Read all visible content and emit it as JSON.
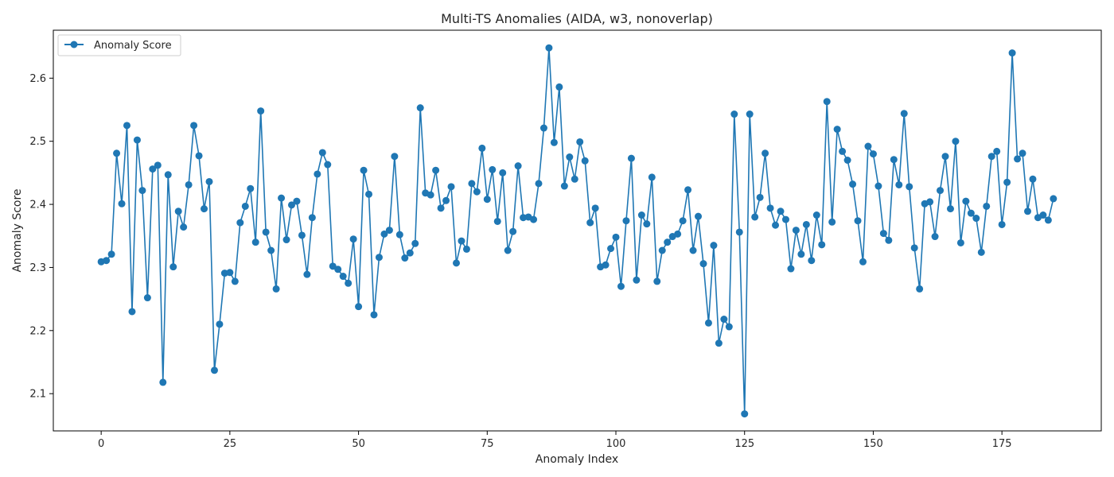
{
  "chart_data": {
    "type": "line",
    "title": "Multi-TS Anomalies (AIDA, w3, nonoverlap)",
    "xlabel": "Anomaly Index",
    "ylabel": "Anomaly Score",
    "xlim": [
      -9.3,
      194.3
    ],
    "ylim": [
      2.041,
      2.676
    ],
    "xticks": [
      0,
      25,
      50,
      75,
      100,
      125,
      150,
      175
    ],
    "yticks": [
      2.1,
      2.2,
      2.3,
      2.4,
      2.5,
      2.6
    ],
    "xtick_labels": [
      "0",
      "25",
      "50",
      "75",
      "100",
      "125",
      "150",
      "175"
    ],
    "ytick_labels": [
      "2.1",
      "2.2",
      "2.3",
      "2.4",
      "2.5",
      "2.6"
    ],
    "grid": false,
    "legend_position": "top-left",
    "color": "#1f77b4",
    "marker": "circle",
    "series": [
      {
        "name": "Anomaly Score",
        "values": [
          2.309,
          2.311,
          2.321,
          2.481,
          2.401,
          2.525,
          2.23,
          2.502,
          2.422,
          2.252,
          2.456,
          2.462,
          2.118,
          2.447,
          2.301,
          2.389,
          2.364,
          2.431,
          2.525,
          2.477,
          2.393,
          2.436,
          2.137,
          2.21,
          2.291,
          2.292,
          2.278,
          2.371,
          2.397,
          2.425,
          2.34,
          2.548,
          2.356,
          2.327,
          2.266,
          2.41,
          2.344,
          2.399,
          2.405,
          2.351,
          2.289,
          2.379,
          2.448,
          2.482,
          2.463,
          2.302,
          2.297,
          2.286,
          2.275,
          2.345,
          2.238,
          2.454,
          2.416,
          2.225,
          2.316,
          2.353,
          2.359,
          2.476,
          2.352,
          2.315,
          2.323,
          2.338,
          2.553,
          2.418,
          2.415,
          2.454,
          2.394,
          2.406,
          2.428,
          2.307,
          2.342,
          2.329,
          2.433,
          2.42,
          2.489,
          2.408,
          2.455,
          2.373,
          2.45,
          2.327,
          2.357,
          2.461,
          2.379,
          2.38,
          2.376,
          2.433,
          2.521,
          2.648,
          2.498,
          2.586,
          2.429,
          2.475,
          2.44,
          2.499,
          2.469,
          2.371,
          2.394,
          2.301,
          2.304,
          2.33,
          2.348,
          2.27,
          2.374,
          2.473,
          2.28,
          2.383,
          2.369,
          2.443,
          2.278,
          2.327,
          2.34,
          2.349,
          2.353,
          2.374,
          2.423,
          2.327,
          2.381,
          2.306,
          2.212,
          2.335,
          2.18,
          2.218,
          2.206,
          2.543,
          2.356,
          2.068,
          2.543,
          2.38,
          2.411,
          2.481,
          2.394,
          2.367,
          2.389,
          2.376,
          2.298,
          2.359,
          2.321,
          2.368,
          2.311,
          2.383,
          2.336,
          2.563,
          2.372,
          2.519,
          2.484,
          2.47,
          2.432,
          2.374,
          2.309,
          2.492,
          2.48,
          2.429,
          2.354,
          2.343,
          2.471,
          2.431,
          2.544,
          2.428,
          2.331,
          2.266,
          2.401,
          2.404,
          2.349,
          2.422,
          2.476,
          2.393,
          2.5,
          2.339,
          2.405,
          2.386,
          2.378,
          2.324,
          2.397,
          2.476,
          2.484,
          2.368,
          2.435,
          2.64,
          2.472,
          2.481,
          2.389,
          2.44,
          2.379,
          2.383,
          2.375,
          2.409
        ]
      }
    ]
  }
}
